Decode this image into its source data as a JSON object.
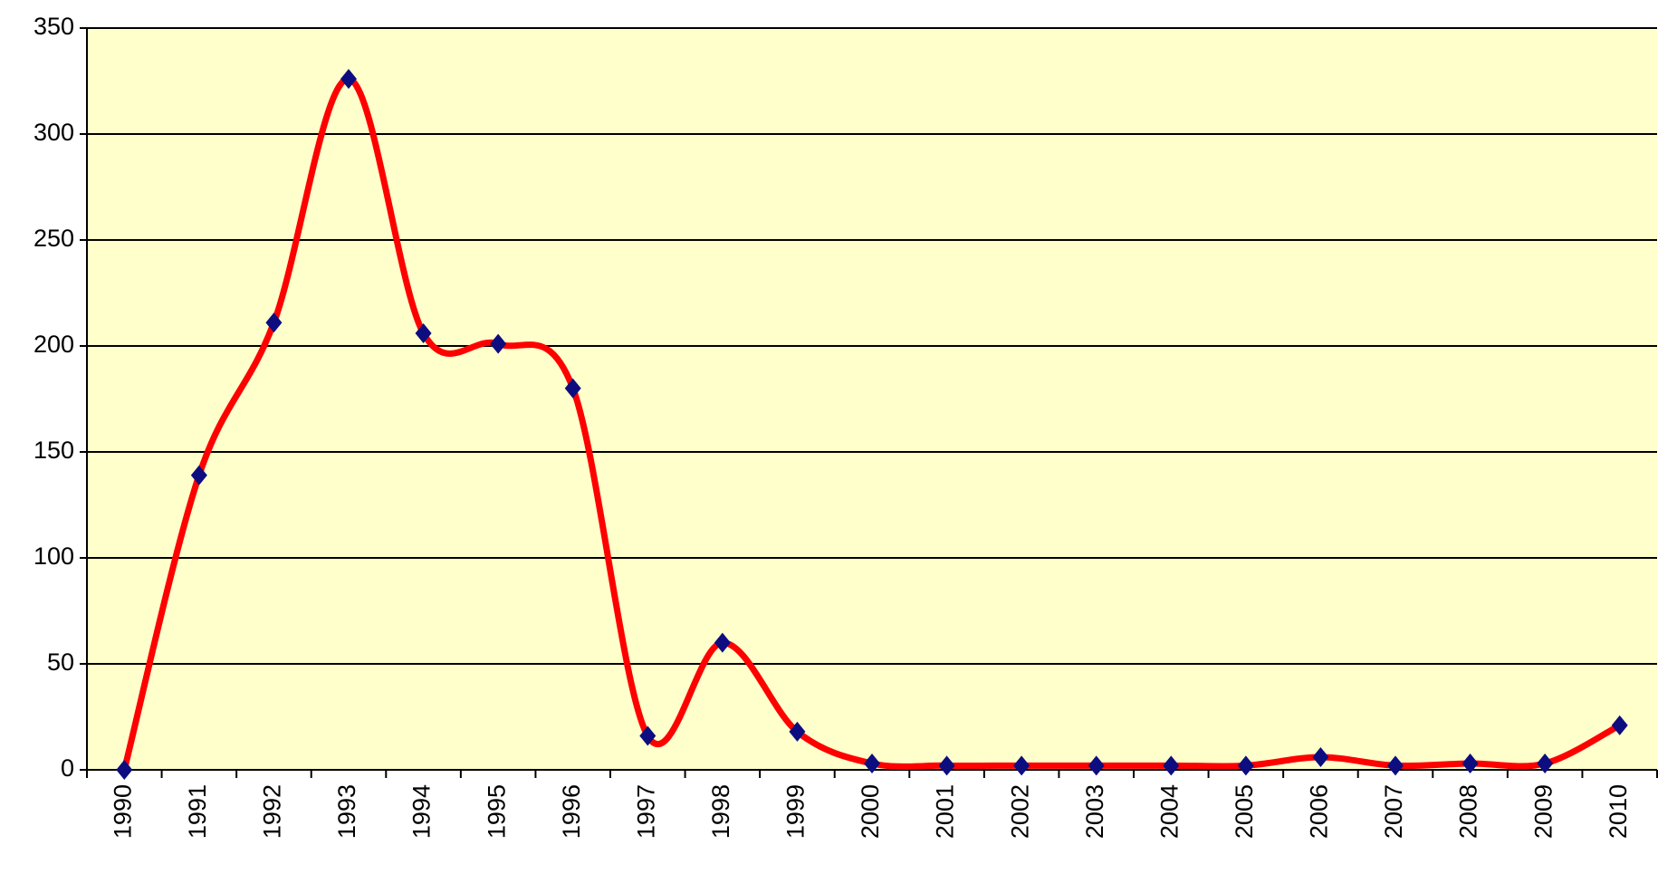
{
  "chart_data": {
    "type": "line",
    "categories": [
      "1990",
      "1991",
      "1992",
      "1993",
      "1994",
      "1995",
      "1996",
      "1997",
      "1998",
      "1999",
      "2000",
      "2001",
      "2002",
      "2003",
      "2004",
      "2005",
      "2006",
      "2007",
      "2008",
      "2009",
      "2010"
    ],
    "values": [
      0,
      139,
      211,
      326,
      206,
      201,
      180,
      16,
      60,
      18,
      3,
      2,
      2,
      2,
      2,
      2,
      6,
      2,
      3,
      3,
      21
    ],
    "color": "#ff0000",
    "marker_color": "#0d0d80",
    "background": "#ffffcc",
    "ylim": [
      0,
      350
    ],
    "yticks": [
      0,
      50,
      100,
      150,
      200,
      250,
      300,
      350
    ],
    "grid": true,
    "smooth": true
  }
}
